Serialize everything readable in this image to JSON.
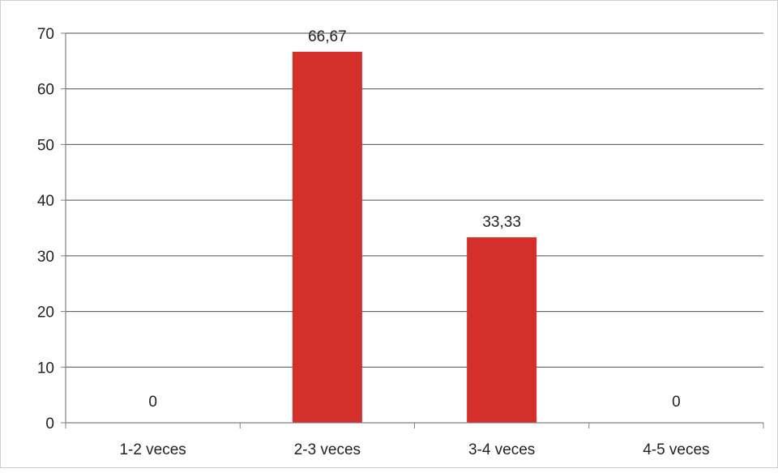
{
  "chart_data": {
    "type": "bar",
    "categories": [
      "1-2 veces",
      "2-3 veces",
      "3-4 veces",
      "4-5 veces"
    ],
    "values": [
      0,
      66.67,
      33.33,
      0
    ],
    "data_labels": [
      "0",
      "66,67",
      "33,33",
      "0"
    ],
    "yticks": [
      "0",
      "10",
      "20",
      "30",
      "40",
      "50",
      "60",
      "70"
    ],
    "ylim": [
      0,
      70
    ],
    "grid": true,
    "legend": "none",
    "bar_color": "#d42f2a",
    "gridline_color": "#4d4d4d"
  }
}
